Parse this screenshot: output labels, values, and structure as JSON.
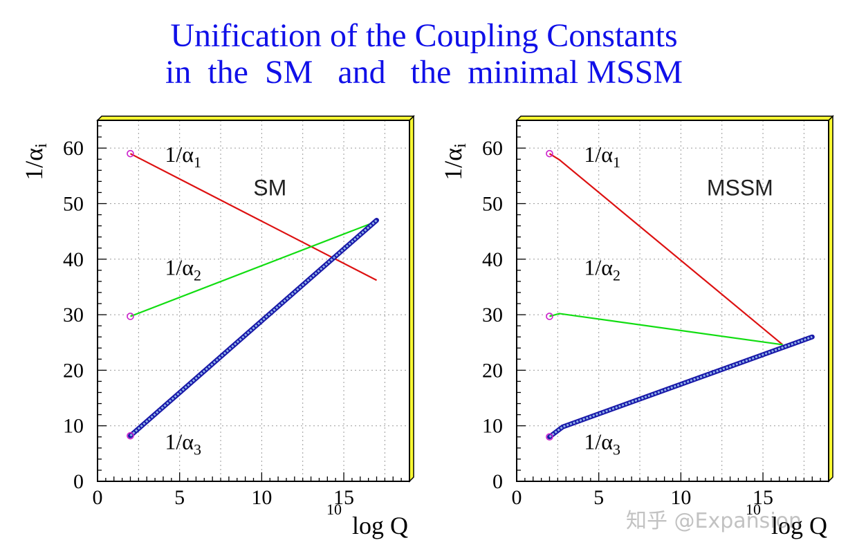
{
  "title": {
    "line1": "Unification of the Coupling Constants",
    "line2": "in  the  SM   and   the  minimal MSSM"
  },
  "watermark": "知乎 @Expansion",
  "colors": {
    "title": "#1010e8",
    "alpha1": "#dd1111",
    "alpha2": "#11dd11",
    "alpha3": "#1818a8",
    "marker": "#cc22cc",
    "frame_shadow": "#ffff33"
  },
  "chart_data": [
    {
      "type": "line",
      "id": "sm",
      "annotation": "SM",
      "ylabel_main": "1/α",
      "ylabel_sub": "i",
      "xlabel_sup": "10",
      "xlabel_main": "log Q",
      "xlim": [
        0,
        19
      ],
      "ylim": [
        0,
        65
      ],
      "xticks": [
        0,
        5,
        10,
        15
      ],
      "yticks": [
        0,
        10,
        20,
        30,
        40,
        50,
        60
      ],
      "grid": true,
      "series": [
        {
          "name": "1/α₁",
          "color": "#dd1111",
          "x": [
            2,
            17
          ],
          "y": [
            59,
            36.2
          ]
        },
        {
          "name": "1/α₂",
          "color": "#11dd11",
          "x": [
            2,
            17
          ],
          "y": [
            29.7,
            46.8
          ]
        },
        {
          "name": "1/α₃",
          "color": "#1818a8",
          "band": true,
          "x": [
            2,
            17
          ],
          "y": [
            8.2,
            47.0
          ]
        }
      ],
      "markers": [
        {
          "x": 2,
          "y": 59
        },
        {
          "x": 2,
          "y": 29.7
        },
        {
          "x": 2,
          "y": 8.2
        }
      ],
      "labels": [
        {
          "text": "1/α",
          "sub": "1",
          "x": 4.1,
          "y": 57.5
        },
        {
          "text": "1/α",
          "sub": "2",
          "x": 4.1,
          "y": 37.2
        },
        {
          "text": "1/α",
          "sub": "3",
          "x": 4.1,
          "y": 5.8
        }
      ]
    },
    {
      "type": "line",
      "id": "mssm",
      "annotation": "MSSM",
      "ylabel_main": "1/α",
      "ylabel_sub": "i",
      "xlabel_sup": "10",
      "xlabel_main": "log Q",
      "xlim": [
        0,
        19
      ],
      "ylim": [
        0,
        65
      ],
      "xticks": [
        0,
        5,
        10,
        15
      ],
      "yticks": [
        0,
        10,
        20,
        30,
        40,
        50,
        60
      ],
      "grid": true,
      "series": [
        {
          "name": "1/α₁",
          "color": "#dd1111",
          "x": [
            2,
            2.6,
            16.2
          ],
          "y": [
            59,
            57.9,
            24.6
          ]
        },
        {
          "name": "1/α₂",
          "color": "#11dd11",
          "x": [
            2,
            2.6,
            16.2
          ],
          "y": [
            29.7,
            30.2,
            24.6
          ]
        },
        {
          "name": "1/α₃",
          "color": "#1818a8",
          "band": true,
          "x": [
            2,
            2.8,
            18
          ],
          "y": [
            8.0,
            9.8,
            26.0
          ]
        }
      ],
      "markers": [
        {
          "x": 2,
          "y": 59
        },
        {
          "x": 2,
          "y": 29.7
        },
        {
          "x": 2,
          "y": 8.0
        }
      ],
      "labels": [
        {
          "text": "1/α",
          "sub": "1",
          "x": 4.1,
          "y": 57.5
        },
        {
          "text": "1/α",
          "sub": "2",
          "x": 4.1,
          "y": 37.2
        },
        {
          "text": "1/α",
          "sub": "3",
          "x": 4.1,
          "y": 5.8
        }
      ]
    }
  ]
}
